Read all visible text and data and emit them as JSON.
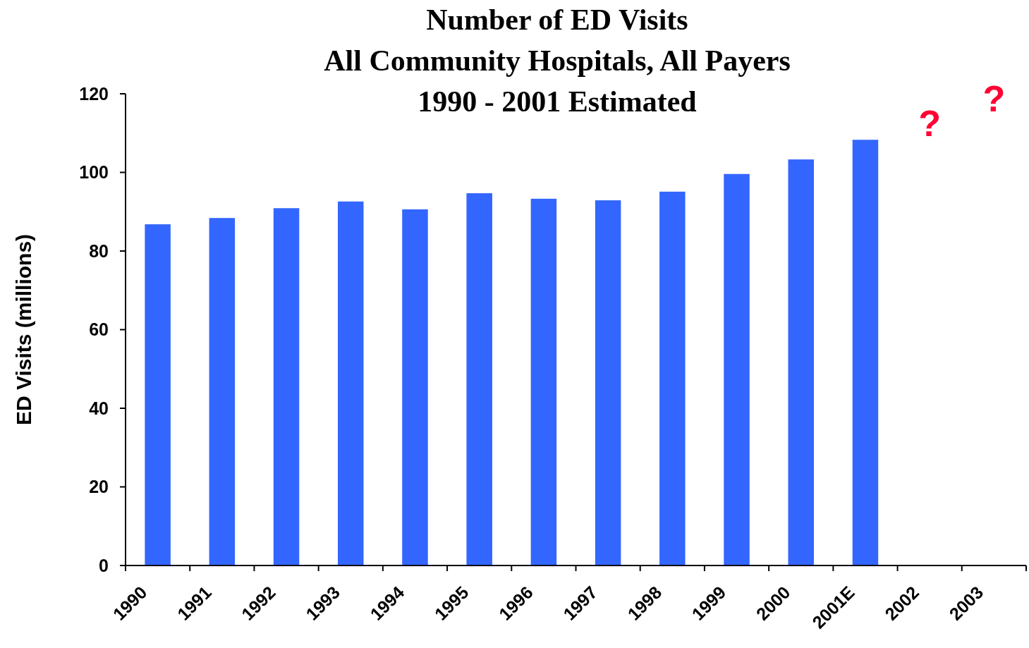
{
  "chart_data": {
    "type": "bar",
    "title": "Number of ED Visits\nAll Community Hospitals, All Payers\n1990 - 2001 Estimated",
    "ylabel": "ED Visits (millions)",
    "categories": [
      "1990",
      "1991",
      "1992",
      "1993",
      "1994",
      "1995",
      "1996",
      "1997",
      "1998",
      "1999",
      "2000",
      "2001E",
      "2002",
      "2003"
    ],
    "values": [
      86.8,
      88.4,
      90.9,
      92.6,
      90.6,
      94.7,
      93.3,
      92.9,
      95.1,
      99.6,
      103.3,
      108.3,
      null,
      null
    ],
    "color": "#3366ff",
    "ylim": [
      0,
      120
    ],
    "yticks": [
      0,
      20,
      40,
      60,
      80,
      100,
      120
    ],
    "annotations": [
      "?",
      "?"
    ]
  }
}
